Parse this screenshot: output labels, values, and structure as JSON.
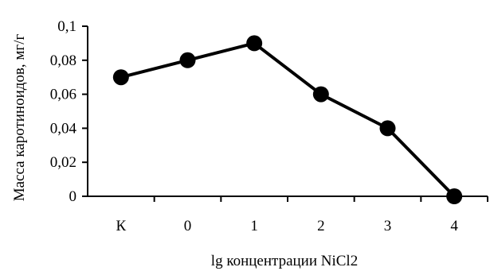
{
  "chart_data": {
    "type": "line",
    "title": "",
    "xlabel": "lg концентрации NiCl2",
    "ylabel": "Масса каротиноидов, мг/г",
    "categories": [
      "К",
      "0",
      "1",
      "2",
      "3",
      "4"
    ],
    "series": [
      {
        "values": [
          0.07,
          0.08,
          0.09,
          0.06,
          0.04,
          0.0
        ]
      }
    ],
    "ylim": [
      0,
      0.1
    ],
    "yticks": [
      0,
      0.02,
      0.04,
      0.06,
      0.08,
      0.1
    ],
    "ytick_labels": [
      "0",
      "0,02",
      "0,04",
      "0,06",
      "0,08",
      "0,1"
    ],
    "grid": false,
    "legend": "none",
    "line_color": "#000000",
    "marker_color": "#000000",
    "marker": "circle"
  }
}
